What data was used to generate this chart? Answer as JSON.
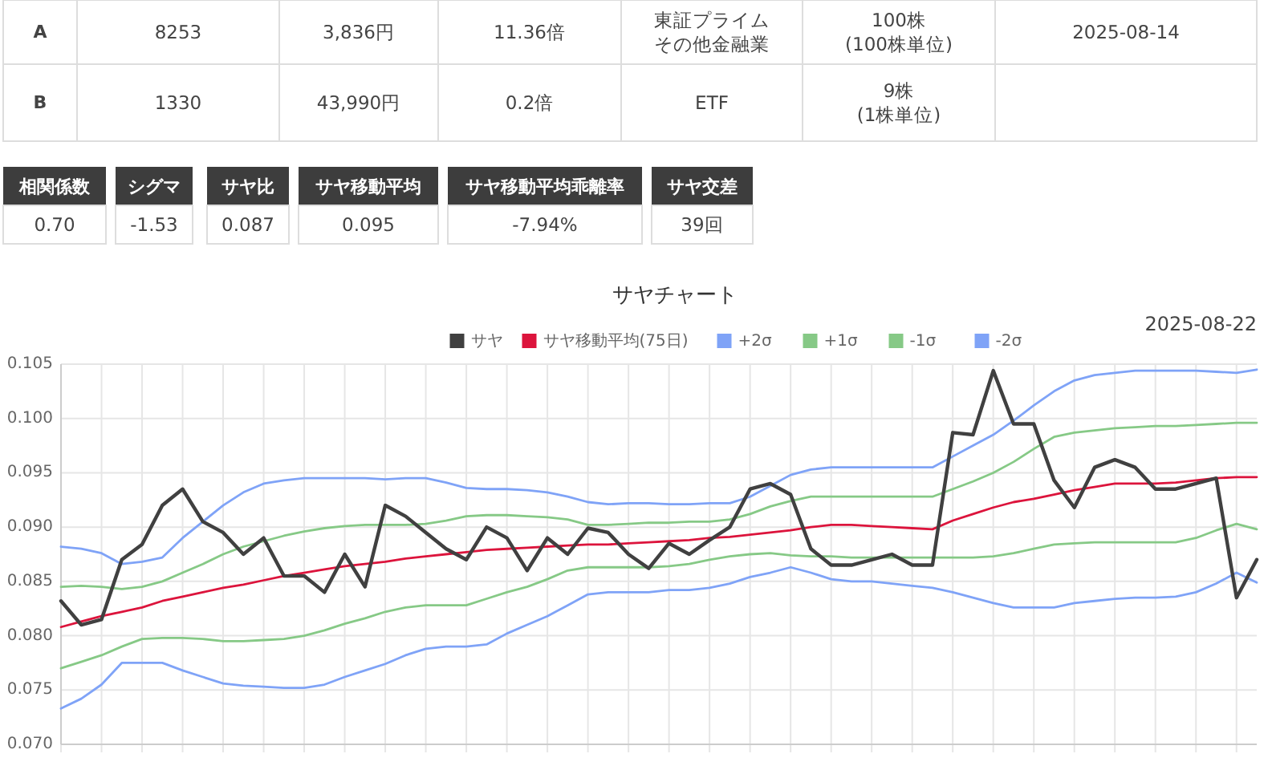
{
  "chart_data": [
    {
      "type": "other",
      "annotations": [
        "A",
        "8253",
        "3,836円",
        "11.36倍",
        "東証プライム",
        "その他金融業",
        "100株",
        "(100株単位)",
        "2025-08-14",
        "B",
        "1330",
        "43,990円",
        "0.2倍",
        "ETF",
        "9株",
        "(1株単位)"
      ]
    },
    {
      "type": "other",
      "annotations": [
        "相関係数",
        "0.70",
        "シグマ",
        "-1.53",
        "サヤ比",
        "0.087",
        "サヤ移動平均",
        "0.095",
        "サヤ移動平均乖離率",
        "-7.94%",
        "サヤ交差",
        "39回"
      ]
    },
    {
      "type": "line",
      "title": "サヤチャート",
      "annotations": [
        "2025-08-22"
      ],
      "legend": "top",
      "grid": true,
      "marker": "none",
      "line_style": "solid",
      "tick_labels": "y",
      "ylim": [
        0.07,
        0.105
      ],
      "yticks": [
        {
          "value": 0.07,
          "label": "0.070"
        },
        {
          "value": 0.075,
          "label": "0.075"
        },
        {
          "value": 0.08,
          "label": "0.080"
        },
        {
          "value": 0.085,
          "label": "0.085"
        },
        {
          "value": 0.09,
          "label": "0.090"
        },
        {
          "value": 0.095,
          "label": "0.095"
        },
        {
          "value": 0.1,
          "label": "0.100"
        },
        {
          "value": 0.105,
          "label": "0.105"
        }
      ],
      "categories": [
        null,
        null,
        null,
        null,
        null,
        null,
        null,
        null,
        null,
        null,
        null,
        null,
        null,
        null,
        null,
        null,
        null,
        null,
        null,
        null,
        null,
        null,
        null,
        null,
        null,
        null,
        null,
        null,
        null,
        null,
        null,
        null,
        null,
        null,
        null,
        null,
        null,
        null,
        null,
        null,
        null,
        null,
        null,
        null,
        null,
        null,
        null,
        null,
        null,
        null,
        null,
        null,
        null,
        null,
        null,
        null,
        null,
        null,
        null,
        null
      ],
      "series": [
        {
          "name": "サヤ",
          "color": "#404040",
          "values": [
            0.0832,
            0.081,
            0.0815,
            0.087,
            0.0884,
            0.092,
            0.0935,
            0.0905,
            0.0895,
            0.0875,
            0.089,
            0.0855,
            0.0855,
            0.084,
            0.0875,
            0.0845,
            0.092,
            0.091,
            0.0895,
            0.088,
            0.087,
            0.09,
            0.089,
            0.086,
            0.089,
            0.0875,
            0.0899,
            0.0895,
            0.0875,
            0.0862,
            0.0885,
            0.0875,
            0.0888,
            0.09,
            0.0935,
            0.094,
            0.093,
            0.088,
            0.0865,
            0.0865,
            0.087,
            0.0875,
            0.0865,
            0.0865,
            0.0987,
            0.0985,
            0.1044,
            0.0995,
            0.0995,
            0.0943,
            0.0918,
            0.0955,
            0.0962,
            0.0955,
            0.0935,
            0.0935,
            0.094,
            0.0945,
            0.0835,
            0.087
          ]
        },
        {
          "name": "サヤ移動平均(75日)",
          "color": "#dc143c",
          "values": [
            0.0808,
            0.0813,
            0.0818,
            0.0822,
            0.0826,
            0.0832,
            0.0836,
            0.084,
            0.0844,
            0.0847,
            0.0851,
            0.0855,
            0.0858,
            0.0861,
            0.0864,
            0.0866,
            0.0868,
            0.0871,
            0.0873,
            0.0875,
            0.0877,
            0.0879,
            0.088,
            0.0881,
            0.0882,
            0.0883,
            0.0884,
            0.0884,
            0.0885,
            0.0886,
            0.0887,
            0.0888,
            0.089,
            0.0891,
            0.0893,
            0.0895,
            0.0897,
            0.09,
            0.0902,
            0.0902,
            0.0901,
            0.09,
            0.0899,
            0.0898,
            0.0906,
            0.0912,
            0.0918,
            0.0923,
            0.0926,
            0.093,
            0.0934,
            0.0937,
            0.094,
            0.094,
            0.094,
            0.0941,
            0.0943,
            0.0945,
            0.0946,
            0.0946
          ]
        },
        {
          "name": "+2σ",
          "color": "#7fa3f7",
          "values": [
            0.0882,
            0.088,
            0.0876,
            0.0866,
            0.0868,
            0.0872,
            0.089,
            0.0905,
            0.092,
            0.0932,
            0.094,
            0.0943,
            0.0945,
            0.0945,
            0.0945,
            0.0945,
            0.0944,
            0.0945,
            0.0945,
            0.0941,
            0.0936,
            0.0935,
            0.0935,
            0.0934,
            0.0932,
            0.0928,
            0.0923,
            0.0921,
            0.0922,
            0.0922,
            0.0921,
            0.0921,
            0.0922,
            0.0922,
            0.0928,
            0.0938,
            0.0948,
            0.0953,
            0.0955,
            0.0955,
            0.0955,
            0.0955,
            0.0955,
            0.0955,
            0.0965,
            0.0975,
            0.0985,
            0.0998,
            0.1012,
            0.1025,
            0.1035,
            0.104,
            0.1042,
            0.1044,
            0.1044,
            0.1044,
            0.1044,
            0.1043,
            0.1042,
            0.1045
          ]
        },
        {
          "name": "+1σ",
          "color": "#86c986",
          "values": [
            0.0845,
            0.0846,
            0.0845,
            0.0843,
            0.0845,
            0.085,
            0.0858,
            0.0866,
            0.0875,
            0.0882,
            0.0887,
            0.0892,
            0.0896,
            0.0899,
            0.0901,
            0.0902,
            0.0902,
            0.0902,
            0.0903,
            0.0906,
            0.091,
            0.0911,
            0.0911,
            0.091,
            0.0909,
            0.0907,
            0.0902,
            0.0902,
            0.0903,
            0.0904,
            0.0904,
            0.0905,
            0.0905,
            0.0907,
            0.0912,
            0.0919,
            0.0924,
            0.0928,
            0.0928,
            0.0928,
            0.0928,
            0.0928,
            0.0928,
            0.0928,
            0.0935,
            0.0942,
            0.095,
            0.096,
            0.0972,
            0.0983,
            0.0987,
            0.0989,
            0.0991,
            0.0992,
            0.0993,
            0.0993,
            0.0994,
            0.0995,
            0.0996,
            0.0996
          ]
        },
        {
          "name": "-1σ",
          "color": "#86c986",
          "values": [
            0.077,
            0.0776,
            0.0782,
            0.079,
            0.0797,
            0.0798,
            0.0798,
            0.0797,
            0.0795,
            0.0795,
            0.0796,
            0.0797,
            0.08,
            0.0805,
            0.0811,
            0.0816,
            0.0822,
            0.0826,
            0.0828,
            0.0828,
            0.0828,
            0.0834,
            0.084,
            0.0845,
            0.0852,
            0.086,
            0.0863,
            0.0863,
            0.0863,
            0.0863,
            0.0864,
            0.0866,
            0.087,
            0.0873,
            0.0875,
            0.0876,
            0.0874,
            0.0873,
            0.0873,
            0.0872,
            0.0872,
            0.0872,
            0.0872,
            0.0872,
            0.0872,
            0.0872,
            0.0873,
            0.0876,
            0.088,
            0.0884,
            0.0885,
            0.0886,
            0.0886,
            0.0886,
            0.0886,
            0.0886,
            0.089,
            0.0897,
            0.0903,
            0.0898
          ]
        },
        {
          "name": "-2σ",
          "color": "#7fa3f7",
          "values": [
            0.0733,
            0.0742,
            0.0755,
            0.0775,
            0.0775,
            0.0775,
            0.0768,
            0.0762,
            0.0756,
            0.0754,
            0.0753,
            0.0752,
            0.0752,
            0.0755,
            0.0762,
            0.0768,
            0.0774,
            0.0782,
            0.0788,
            0.079,
            0.079,
            0.0792,
            0.0802,
            0.081,
            0.0818,
            0.0828,
            0.0838,
            0.084,
            0.084,
            0.084,
            0.0842,
            0.0842,
            0.0844,
            0.0848,
            0.0854,
            0.0858,
            0.0863,
            0.0858,
            0.0852,
            0.085,
            0.085,
            0.0848,
            0.0846,
            0.0844,
            0.084,
            0.0835,
            0.083,
            0.0826,
            0.0826,
            0.0826,
            0.083,
            0.0832,
            0.0834,
            0.0835,
            0.0835,
            0.0836,
            0.084,
            0.0848,
            0.0858,
            0.0849
          ]
        }
      ]
    }
  ]
}
